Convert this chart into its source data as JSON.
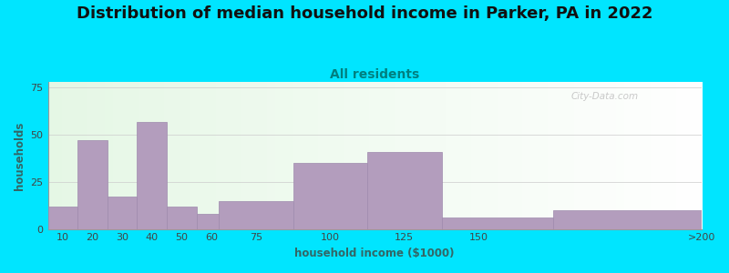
{
  "title": "Distribution of median household income in Parker, PA in 2022",
  "subtitle": "All residents",
  "xlabel": "household income ($1000)",
  "ylabel": "households",
  "title_fontsize": 13,
  "subtitle_fontsize": 10,
  "label_fontsize": 8.5,
  "tick_fontsize": 8,
  "bar_left_edges": [
    5,
    15,
    25,
    35,
    45,
    55,
    62.5,
    87.5,
    112.5,
    137.5,
    175
  ],
  "bar_widths": [
    10,
    10,
    10,
    10,
    10,
    7.5,
    25,
    25,
    25,
    37.5,
    50
  ],
  "values": [
    12,
    47,
    17,
    57,
    12,
    8,
    15,
    35,
    41,
    6,
    10
  ],
  "bar_color": "#b39dbd",
  "bar_edge_color": "#9e8aad",
  "background_outer": "#00e5ff",
  "ylim": [
    0,
    78
  ],
  "xlim": [
    5,
    225
  ],
  "yticks": [
    0,
    25,
    50,
    75
  ],
  "xtick_positions": [
    10,
    20,
    30,
    40,
    50,
    60,
    75,
    100,
    125,
    150,
    225
  ],
  "xtick_labels": [
    "10",
    "20",
    "30",
    "40",
    "50",
    "60",
    "75",
    "100",
    "125",
    "150",
    ">200"
  ],
  "watermark": "City-Data.com",
  "title_color": "#111111",
  "subtitle_color": "#008080",
  "axis_label_color": "#336666"
}
